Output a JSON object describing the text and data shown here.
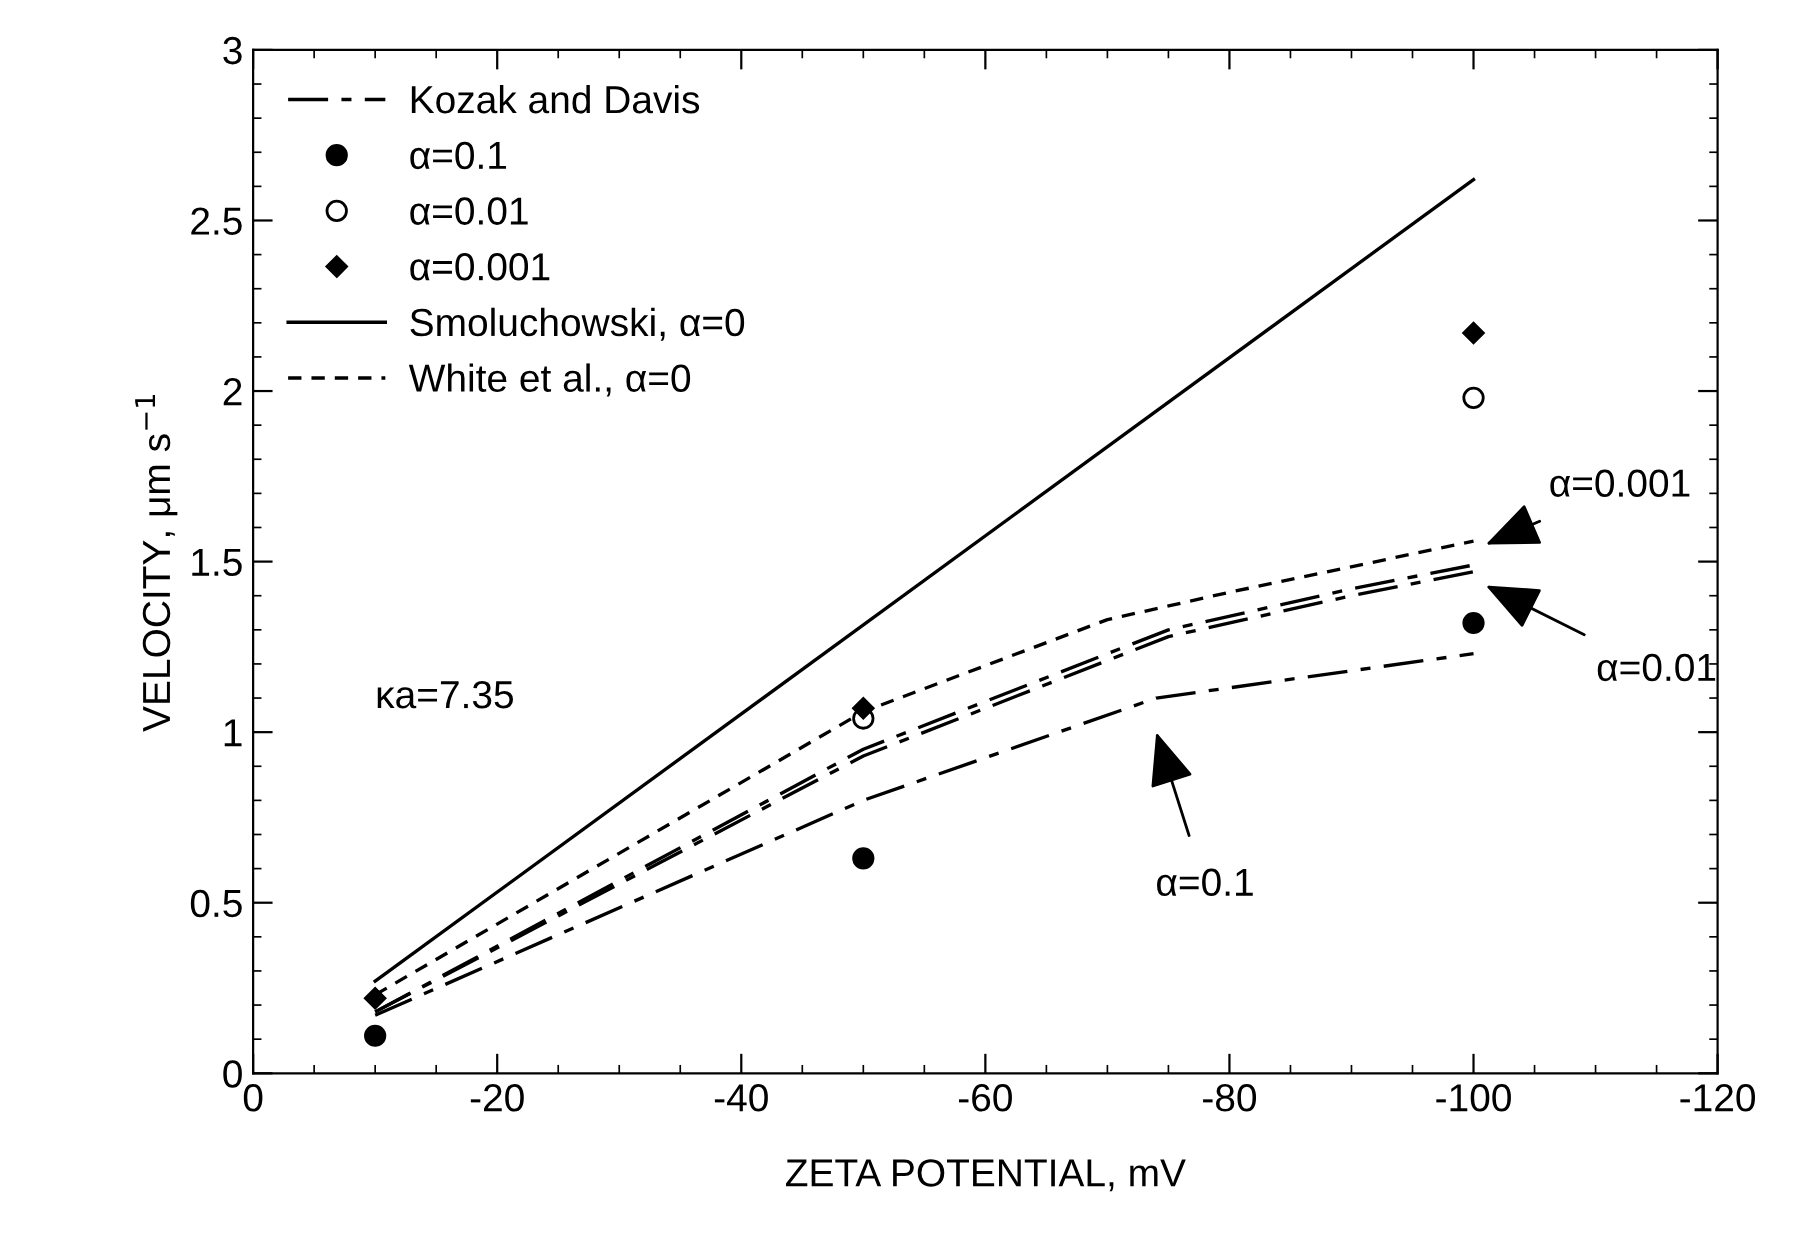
{
  "chart_data": {
    "type": "line",
    "xlabel": "ZETA POTENTIAL, mV",
    "ylabel": "VELOCITY, μm s$^{−1}$",
    "xlim": [
      0,
      -120
    ],
    "xticks": [
      0,
      -20,
      -40,
      -60,
      -80,
      -100,
      -120
    ],
    "ylim": [
      0,
      3
    ],
    "yticks": [
      0,
      0.5,
      1,
      1.5,
      2,
      2.5,
      3
    ],
    "grid": false,
    "legend": "top left",
    "series": [
      {
        "name": "Kozak and Davis",
        "line_style": "dashdot",
        "color": "#000000",
        "x": [
          -10,
          -50,
          -75,
          -90,
          -100
        ],
        "values": [
          0.18,
          0.95,
          1.3,
          1.42,
          1.49
        ]
      },
      {
        "line_style": "dashdot",
        "color": "#000000",
        "x": [
          -10,
          -50,
          -75,
          -90,
          -100
        ],
        "values": [
          0.18,
          0.93,
          1.28,
          1.4,
          1.47
        ]
      },
      {
        "line_style": "dashdot",
        "color": "#000000",
        "x": [
          -10,
          -50,
          -74,
          -100
        ],
        "values": [
          0.17,
          0.8,
          1.1,
          1.23
        ]
      },
      {
        "name": "α=0.1",
        "type": "scatter",
        "marker": "circle",
        "color": "#000000",
        "x": [
          -10,
          -50,
          -100
        ],
        "values": [
          0.11,
          0.63,
          1.32
        ]
      },
      {
        "name": "α=0.01",
        "type": "scatter",
        "marker": "open circle",
        "color": "#000000",
        "x": [
          -50,
          -100
        ],
        "values": [
          1.04,
          1.98
        ]
      },
      {
        "name": "α=0.001",
        "type": "scatter",
        "marker": "diamond",
        "color": "#000000",
        "x": [
          -10,
          -50,
          -100
        ],
        "values": [
          0.22,
          1.07,
          2.17
        ]
      },
      {
        "name": "Smoluchowski, α=0",
        "line_style": "solid",
        "color": "#000000",
        "x": [
          -10,
          -100
        ],
        "values": [
          0.27,
          2.62
        ]
      },
      {
        "name": "White et al., α=0",
        "line_style": "dashed",
        "color": "#000000",
        "x": [
          -10,
          -50,
          -70,
          -80,
          -100
        ],
        "values": [
          0.23,
          1.06,
          1.33,
          1.41,
          1.56
        ]
      }
    ],
    "annotations": [
      "α=0.001",
      "α=0.01",
      "α=0.1",
      "κa=7.35"
    ]
  }
}
